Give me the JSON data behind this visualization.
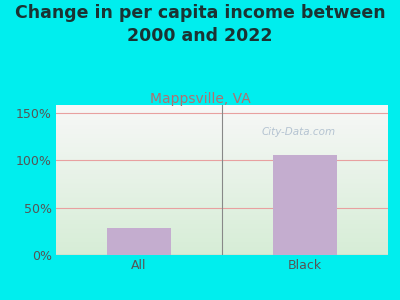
{
  "title": "Change in per capita income between\n2000 and 2022",
  "subtitle": "Mappsville, VA",
  "categories": [
    "All",
    "Black"
  ],
  "values": [
    28,
    105
  ],
  "bar_color": "#C4ADCF",
  "title_fontsize": 12.5,
  "subtitle_fontsize": 10,
  "subtitle_color": "#B07070",
  "title_color": "#1A3333",
  "bg_color": "#00EEEE",
  "plot_bg_top": "#F8F8F8",
  "plot_bg_bottom": "#D8EDD8",
  "yticks": [
    0,
    50,
    100,
    150
  ],
  "ylim": [
    0,
    158
  ],
  "watermark": "City-Data.com",
  "watermark_color": "#AABBCC",
  "grid_color": "#E8A0A0",
  "tick_label_color": "#555555",
  "xtick_label_color": "#555555"
}
